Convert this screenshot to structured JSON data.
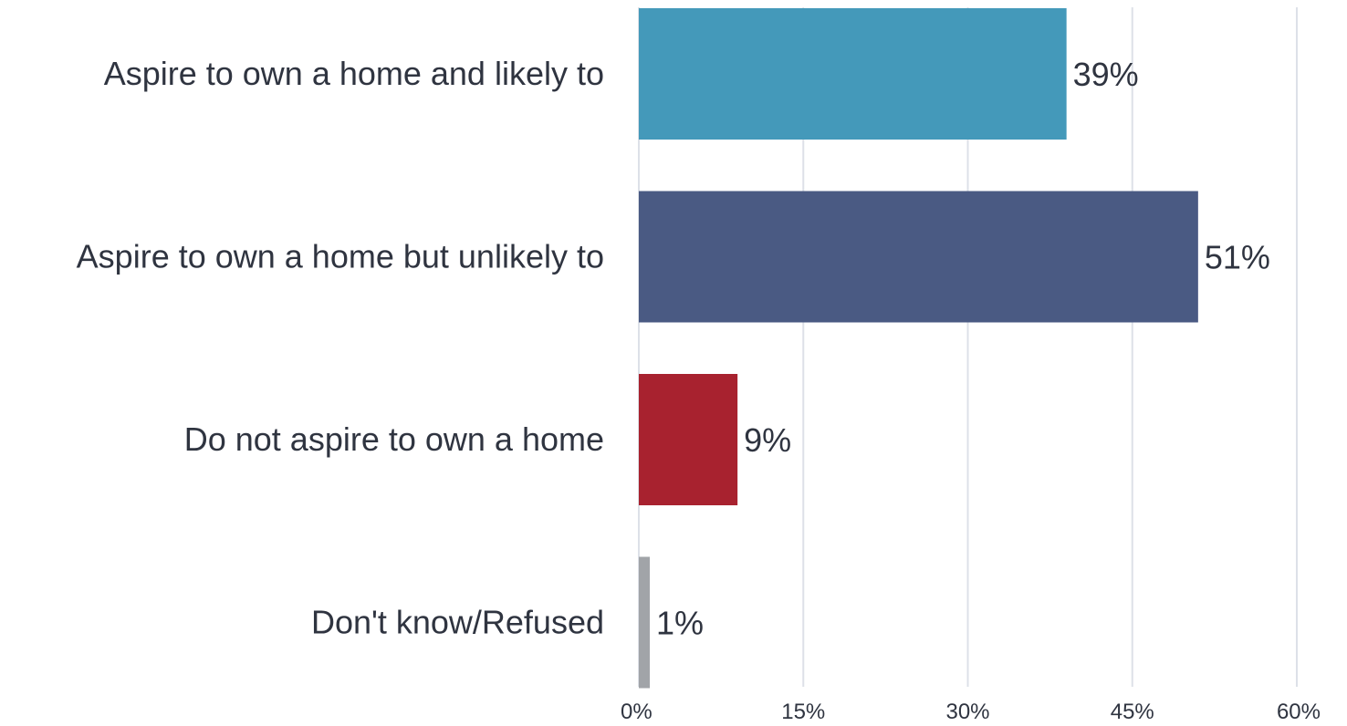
{
  "chart_data": {
    "type": "bar",
    "orientation": "horizontal",
    "categories": [
      "Aspire to own a home and likely to",
      "Aspire to own a home but unlikely to",
      "Do not aspire to own a home",
      "Don't know/Refused"
    ],
    "values": [
      39,
      51,
      9,
      1
    ],
    "value_labels": [
      "39%",
      "51%",
      "9%",
      "1%"
    ],
    "colors": [
      "#4499ba",
      "#4a5a83",
      "#a8222f",
      "#a1a4a8"
    ],
    "xlim": [
      0,
      60
    ],
    "x_ticks": [
      0,
      15,
      30,
      45,
      60
    ],
    "x_tick_labels": [
      "0%",
      "15%",
      "30%",
      "45%",
      "60%"
    ],
    "grid": true,
    "legend": "none",
    "title": "",
    "xlabel": "",
    "ylabel": ""
  }
}
